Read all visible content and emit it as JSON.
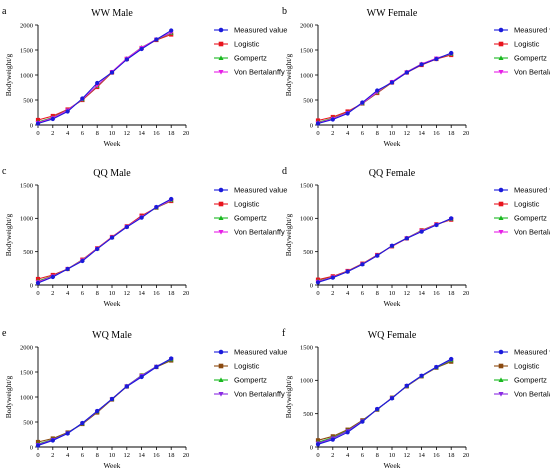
{
  "colors": {
    "measured": "#1a1adb",
    "logistic_red": "#e8141e",
    "logistic_brown": "#8b4a10",
    "gompertz": "#19b81f",
    "bertalanffy_magenta": "#e61fe6",
    "bertalanffy_purple": "#8a2be2"
  },
  "chart_data": [
    {
      "type": "line",
      "letter": "a",
      "title": "WW Male",
      "xlabel": "Week",
      "ylabel": "Bodyweight/g",
      "xlim": [
        0,
        20
      ],
      "ylim": [
        0,
        2000
      ],
      "xticks": [
        "0",
        "2",
        "4",
        "6",
        "8",
        "10",
        "12",
        "14",
        "16",
        "18",
        "20"
      ],
      "yticks": [
        "0",
        "500",
        "1000",
        "1500",
        "2000"
      ],
      "x": [
        0,
        2,
        4,
        6,
        8,
        10,
        12,
        14,
        16,
        18
      ],
      "series": [
        {
          "name": "Measured value",
          "marker": "circle",
          "color": "#1a1adb",
          "values": [
            30,
            120,
            270,
            530,
            840,
            1050,
            1310,
            1520,
            1710,
            1890
          ]
        },
        {
          "name": "Logistic",
          "marker": "square",
          "color": "#e8141e",
          "values": [
            100,
            180,
            310,
            500,
            760,
            1050,
            1320,
            1540,
            1700,
            1810
          ]
        },
        {
          "name": "Gompertz",
          "marker": "triangle-up",
          "color": "#19b81f",
          "values": [
            60,
            150,
            300,
            510,
            780,
            1060,
            1330,
            1550,
            1710,
            1840
          ]
        },
        {
          "name": "Von Bertalanffy",
          "marker": "triangle-down",
          "color": "#e61fe6",
          "values": [
            45,
            140,
            295,
            515,
            790,
            1065,
            1330,
            1545,
            1715,
            1850
          ]
        }
      ]
    },
    {
      "type": "line",
      "letter": "b",
      "title": "WW Female",
      "xlabel": "Week",
      "ylabel": "Bodyweight/g",
      "xlim": [
        0,
        20
      ],
      "ylim": [
        0,
        2000
      ],
      "xticks": [
        "0",
        "2",
        "4",
        "6",
        "8",
        "10",
        "12",
        "14",
        "16",
        "18",
        "20"
      ],
      "yticks": [
        "0",
        "500",
        "1000",
        "1500",
        "2000"
      ],
      "x": [
        0,
        2,
        4,
        6,
        8,
        10,
        12,
        14,
        16,
        18
      ],
      "series": [
        {
          "name": "Measured value",
          "marker": "circle",
          "color": "#1a1adb",
          "values": [
            30,
            110,
            230,
            450,
            690,
            850,
            1050,
            1210,
            1320,
            1440
          ]
        },
        {
          "name": "Logistic",
          "marker": "square",
          "color": "#e8141e",
          "values": [
            90,
            160,
            270,
            430,
            640,
            850,
            1050,
            1200,
            1320,
            1400
          ]
        },
        {
          "name": "Gompertz",
          "marker": "triangle-up",
          "color": "#19b81f",
          "values": [
            55,
            135,
            250,
            430,
            650,
            860,
            1060,
            1220,
            1330,
            1420
          ]
        },
        {
          "name": "Von Bertalanffy",
          "marker": "triangle-down",
          "color": "#e61fe6",
          "values": [
            40,
            125,
            245,
            435,
            660,
            865,
            1060,
            1220,
            1335,
            1425
          ]
        }
      ]
    },
    {
      "type": "line",
      "letter": "c",
      "title": "QQ Male",
      "xlabel": "Week",
      "ylabel": "Bodyweight/g",
      "xlim": [
        0,
        20
      ],
      "ylim": [
        0,
        1500
      ],
      "xticks": [
        "0",
        "2",
        "4",
        "6",
        "8",
        "10",
        "12",
        "14",
        "16",
        "18",
        "20"
      ],
      "yticks": [
        "0",
        "500",
        "1000",
        "1500"
      ],
      "x": [
        0,
        2,
        4,
        6,
        8,
        10,
        12,
        14,
        16,
        18
      ],
      "series": [
        {
          "name": "Measured value",
          "marker": "circle",
          "color": "#1a1adb",
          "values": [
            30,
            120,
            240,
            360,
            540,
            710,
            870,
            1010,
            1170,
            1290
          ]
        },
        {
          "name": "Logistic",
          "marker": "square",
          "color": "#e8141e",
          "values": [
            90,
            150,
            240,
            380,
            550,
            720,
            880,
            1040,
            1160,
            1260
          ]
        },
        {
          "name": "Gompertz",
          "marker": "triangle-up",
          "color": "#19b81f",
          "values": [
            60,
            135,
            240,
            375,
            545,
            715,
            875,
            1025,
            1160,
            1270
          ]
        },
        {
          "name": "Von Bertalanffy",
          "marker": "triangle-down",
          "color": "#e61fe6",
          "values": [
            45,
            130,
            240,
            370,
            545,
            715,
            875,
            1020,
            1165,
            1275
          ]
        }
      ]
    },
    {
      "type": "line",
      "letter": "d",
      "title": "QQ Female",
      "xlabel": "Week",
      "ylabel": "Bodyweight/g",
      "xlim": [
        0,
        20
      ],
      "ylim": [
        0,
        1500
      ],
      "xticks": [
        "0",
        "2",
        "4",
        "6",
        "8",
        "10",
        "12",
        "14",
        "16",
        "18",
        "20"
      ],
      "yticks": [
        "0",
        "500",
        "1000",
        "1500"
      ],
      "x": [
        0,
        2,
        4,
        6,
        8,
        10,
        12,
        14,
        16,
        18
      ],
      "series": [
        {
          "name": "Measured value",
          "marker": "circle",
          "color": "#1a1adb",
          "values": [
            40,
            110,
            200,
            310,
            440,
            590,
            700,
            800,
            900,
            1000
          ]
        },
        {
          "name": "Logistic",
          "marker": "square",
          "color": "#e8141e",
          "values": [
            80,
            130,
            210,
            320,
            450,
            580,
            700,
            820,
            910,
            980
          ]
        },
        {
          "name": "Gompertz",
          "marker": "triangle-up",
          "color": "#19b81f",
          "values": [
            60,
            120,
            205,
            315,
            445,
            585,
            705,
            815,
            905,
            990
          ]
        },
        {
          "name": "Von Bertalanffy",
          "marker": "triangle-down",
          "color": "#e61fe6",
          "values": [
            50,
            118,
            203,
            313,
            443,
            585,
            703,
            810,
            905,
            992
          ]
        }
      ]
    },
    {
      "type": "line",
      "letter": "e",
      "title": "WQ Male",
      "xlabel": "Week",
      "ylabel": "Bodyweight/g",
      "xlim": [
        0,
        20
      ],
      "ylim": [
        0,
        2000
      ],
      "xticks": [
        "0",
        "2",
        "4",
        "6",
        "8",
        "10",
        "12",
        "14",
        "16",
        "18",
        "20"
      ],
      "yticks": [
        "0",
        "500",
        "1000",
        "1500",
        "2000"
      ],
      "x": [
        0,
        2,
        4,
        6,
        8,
        10,
        12,
        14,
        16,
        18
      ],
      "series": [
        {
          "name": "Measured value",
          "marker": "circle",
          "color": "#1a1adb",
          "values": [
            30,
            130,
            270,
            480,
            720,
            960,
            1210,
            1400,
            1600,
            1770
          ]
        },
        {
          "name": "Logistic",
          "marker": "square",
          "color": "#8b4a10",
          "values": [
            100,
            170,
            290,
            460,
            690,
            950,
            1210,
            1430,
            1600,
            1730
          ]
        },
        {
          "name": "Gompertz",
          "marker": "triangle-up",
          "color": "#19b81f",
          "values": [
            60,
            150,
            280,
            470,
            710,
            960,
            1220,
            1430,
            1610,
            1750
          ]
        },
        {
          "name": "Von Bertalanffy",
          "marker": "triangle-down",
          "color": "#8a2be2",
          "values": [
            45,
            145,
            278,
            472,
            712,
            962,
            1220,
            1425,
            1610,
            1760
          ]
        }
      ]
    },
    {
      "type": "line",
      "letter": "f",
      "title": "WQ Female",
      "xlabel": "Week",
      "ylabel": "Bodyweight/g",
      "xlim": [
        0,
        20
      ],
      "ylim": [
        0,
        1500
      ],
      "xticks": [
        "0",
        "2",
        "4",
        "6",
        "8",
        "10",
        "12",
        "14",
        "16",
        "18",
        "20"
      ],
      "yticks": [
        "0",
        "500",
        "1000",
        "1500"
      ],
      "x": [
        0,
        2,
        4,
        6,
        8,
        10,
        12,
        14,
        16,
        18
      ],
      "series": [
        {
          "name": "Measured value",
          "marker": "circle",
          "color": "#1a1adb",
          "values": [
            40,
            110,
            220,
            380,
            570,
            730,
            920,
            1070,
            1200,
            1320
          ]
        },
        {
          "name": "Logistic",
          "marker": "square",
          "color": "#8b4a10",
          "values": [
            100,
            160,
            260,
            400,
            560,
            740,
            910,
            1060,
            1190,
            1280
          ]
        },
        {
          "name": "Gompertz",
          "marker": "triangle-up",
          "color": "#19b81f",
          "values": [
            70,
            140,
            245,
            390,
            565,
            735,
            915,
            1065,
            1195,
            1300
          ]
        },
        {
          "name": "Von Bertalanffy",
          "marker": "triangle-down",
          "color": "#8a2be2",
          "values": [
            55,
            130,
            240,
            388,
            566,
            735,
            916,
            1066,
            1198,
            1308
          ]
        }
      ]
    }
  ]
}
